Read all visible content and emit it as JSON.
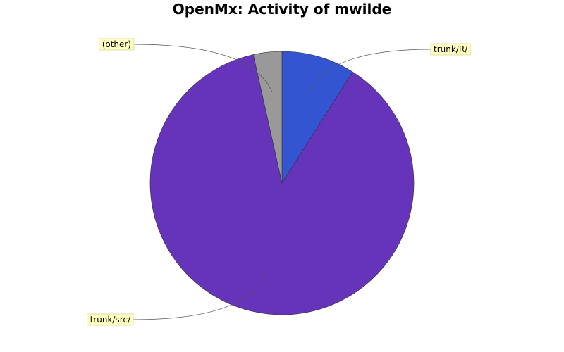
{
  "chart_data": {
    "type": "pie",
    "title": "OpenMx: Activity of mwilde",
    "labels": [
      "trunk/R/",
      "trunk/src/",
      "(other)"
    ],
    "values": [
      9.0,
      87.5,
      3.5
    ],
    "colors": [
      "#3355d1",
      "#6633bb",
      "#999999"
    ],
    "start": "12 o'clock",
    "direction": "clockwise",
    "label_style": "callouts",
    "legend": "none"
  }
}
